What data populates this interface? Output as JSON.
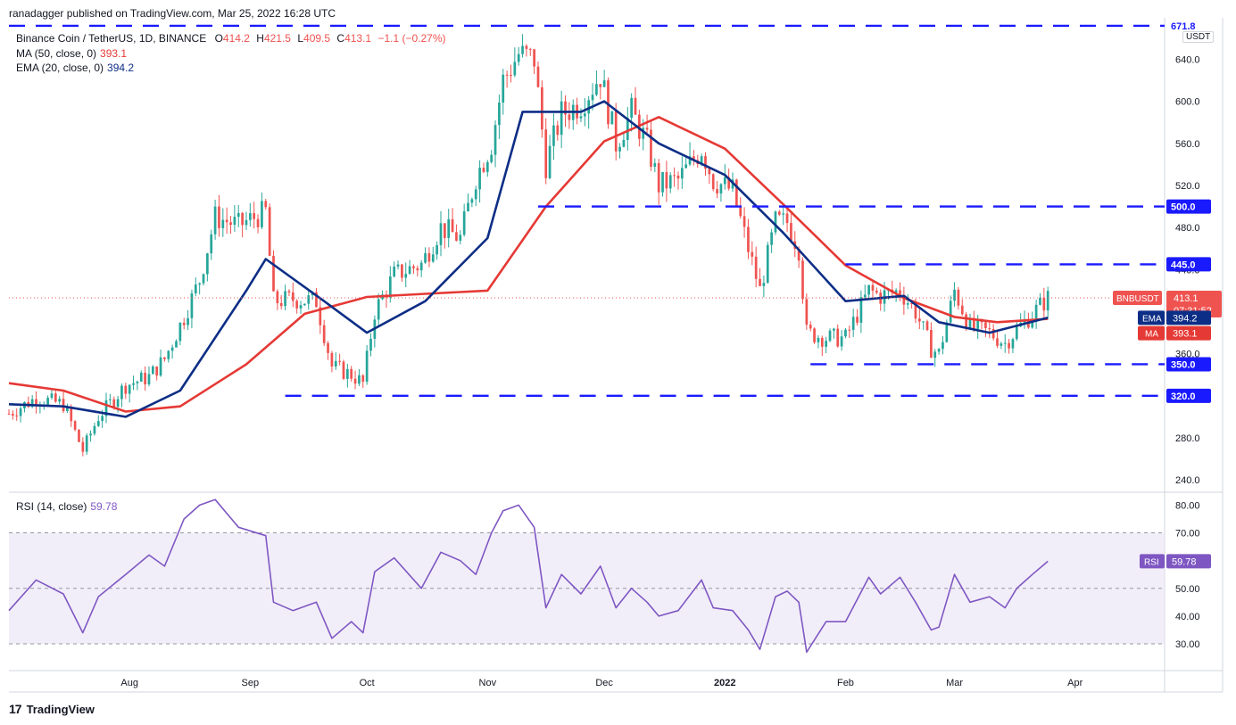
{
  "publish_info": "ranadagger published on TradingView.com, Mar 25, 2022 16:28 UTC",
  "brand": "TradingView",
  "currency_badge": "USDT",
  "legend": {
    "symbol_line": {
      "name": "Binance Coin / TetherUS, 1D, BINANCE",
      "o_label": "O",
      "o": "414.2",
      "h_label": "H",
      "h": "421.5",
      "l_label": "L",
      "l": "409.5",
      "c_label": "C",
      "c": "413.1",
      "change": "−1.1 (−0.27%)"
    },
    "ma": {
      "label": "MA (50, close, 0)",
      "value": "393.1"
    },
    "ema": {
      "label": "EMA (20, close, 0)",
      "value": "394.2"
    },
    "rsi": {
      "label": "RSI (14, close)",
      "value": "59.78"
    }
  },
  "colors": {
    "up": "#26a69a",
    "down": "#ef5350",
    "ma": "#e53935",
    "ema": "#0d2e86",
    "rsi": "#7e57c2",
    "level": "#1a1aff",
    "band": "#ede7f6"
  },
  "chart_data": [
    {
      "type": "candlestick",
      "symbol": "BNBUSDT",
      "ylim": [
        230,
        676
      ],
      "y_ticks": [
        "240.0",
        "280.0",
        "320.0",
        "360.0",
        "400.0",
        "440.0",
        "480.0",
        "520.0",
        "560.0",
        "600.0",
        "640.0",
        "671.8"
      ],
      "x_ticks": [
        "Aug",
        "Sep",
        "Oct",
        "Nov",
        "Dec",
        "2022",
        "Feb",
        "Mar",
        "Apr"
      ],
      "levels": [
        {
          "label": "671.8",
          "value": 671.8,
          "from": "2021-07-01"
        },
        {
          "label": "500.0",
          "value": 500.0,
          "from": "2021-11-14"
        },
        {
          "label": "445.0",
          "value": 445.0,
          "from": "2022-02-01"
        },
        {
          "label": "350.0",
          "value": 350.0,
          "from": "2022-01-23"
        },
        {
          "label": "320.0",
          "value": 320.0,
          "from": "2021-09-10"
        }
      ],
      "last_price": {
        "label": "BNBUSDT",
        "value": "413.1",
        "countdown": "07:31:52"
      },
      "ema_tag": {
        "label": "EMA",
        "value": "394.2"
      },
      "ma_tag": {
        "label": "MA",
        "value": "393.1"
      },
      "price_path": [
        [
          "2021-07-01",
          303
        ],
        [
          "2021-07-08",
          318
        ],
        [
          "2021-07-15",
          312
        ],
        [
          "2021-07-20",
          268
        ],
        [
          "2021-07-24",
          300
        ],
        [
          "2021-07-31",
          330
        ],
        [
          "2021-08-06",
          338
        ],
        [
          "2021-08-10",
          355
        ],
        [
          "2021-08-15",
          395
        ],
        [
          "2021-08-19",
          430
        ],
        [
          "2021-08-23",
          490
        ],
        [
          "2021-08-29",
          482
        ],
        [
          "2021-09-05",
          495
        ],
        [
          "2021-09-07",
          410
        ],
        [
          "2021-09-12",
          412
        ],
        [
          "2021-09-18",
          410
        ],
        [
          "2021-09-22",
          348
        ],
        [
          "2021-09-27",
          340
        ],
        [
          "2021-09-30",
          332
        ],
        [
          "2021-10-03",
          400
        ],
        [
          "2021-10-08",
          435
        ],
        [
          "2021-10-15",
          445
        ],
        [
          "2021-10-20",
          480
        ],
        [
          "2021-10-25",
          470
        ],
        [
          "2021-10-29",
          528
        ],
        [
          "2021-11-02",
          560
        ],
        [
          "2021-11-05",
          620
        ],
        [
          "2021-11-09",
          645
        ],
        [
          "2021-11-13",
          640
        ],
        [
          "2021-11-16",
          540
        ],
        [
          "2021-11-20",
          588
        ],
        [
          "2021-11-25",
          598
        ],
        [
          "2021-11-30",
          625
        ],
        [
          "2021-12-04",
          560
        ],
        [
          "2021-12-08",
          590
        ],
        [
          "2021-12-12",
          560
        ],
        [
          "2021-12-15",
          520
        ],
        [
          "2021-12-20",
          525
        ],
        [
          "2021-12-26",
          555
        ],
        [
          "2021-12-29",
          525
        ],
        [
          "2022-01-03",
          515
        ],
        [
          "2022-01-07",
          460
        ],
        [
          "2022-01-10",
          420
        ],
        [
          "2022-01-14",
          485
        ],
        [
          "2022-01-17",
          485
        ],
        [
          "2022-01-20",
          460
        ],
        [
          "2022-01-22",
          380
        ],
        [
          "2022-01-27",
          375
        ],
        [
          "2022-02-01",
          375
        ],
        [
          "2022-02-07",
          420
        ],
        [
          "2022-02-10",
          415
        ],
        [
          "2022-02-15",
          420
        ],
        [
          "2022-02-19",
          400
        ],
        [
          "2022-02-23",
          365
        ],
        [
          "2022-02-25",
          360
        ],
        [
          "2022-03-01",
          420
        ],
        [
          "2022-03-05",
          385
        ],
        [
          "2022-03-10",
          380
        ],
        [
          "2022-03-14",
          370
        ],
        [
          "2022-03-17",
          383
        ],
        [
          "2022-03-21",
          398
        ],
        [
          "2022-03-25",
          413.1
        ]
      ],
      "ma50_path": [
        [
          "2021-07-01",
          332
        ],
        [
          "2021-07-15",
          325
        ],
        [
          "2021-07-31",
          305
        ],
        [
          "2021-08-14",
          310
        ],
        [
          "2021-08-31",
          350
        ],
        [
          "2021-09-15",
          398
        ],
        [
          "2021-10-01",
          414
        ],
        [
          "2021-10-16",
          417
        ],
        [
          "2021-11-01",
          420
        ],
        [
          "2021-11-16",
          500
        ],
        [
          "2021-12-01",
          562
        ],
        [
          "2021-12-15",
          585
        ],
        [
          "2022-01-01",
          555
        ],
        [
          "2022-01-16",
          502
        ],
        [
          "2022-02-01",
          444
        ],
        [
          "2022-02-16",
          413
        ],
        [
          "2022-03-01",
          395
        ],
        [
          "2022-03-12",
          390
        ],
        [
          "2022-03-25",
          393.1
        ]
      ],
      "ema20_path": [
        [
          "2021-07-01",
          312
        ],
        [
          "2021-07-15",
          310
        ],
        [
          "2021-07-31",
          300
        ],
        [
          "2021-08-14",
          325
        ],
        [
          "2021-08-31",
          420
        ],
        [
          "2021-09-05",
          450
        ],
        [
          "2021-09-20",
          410
        ],
        [
          "2021-10-01",
          380
        ],
        [
          "2021-10-16",
          410
        ],
        [
          "2021-11-01",
          470
        ],
        [
          "2021-11-10",
          590
        ],
        [
          "2021-11-25",
          590
        ],
        [
          "2021-12-01",
          600
        ],
        [
          "2021-12-15",
          560
        ],
        [
          "2022-01-01",
          530
        ],
        [
          "2022-01-16",
          475
        ],
        [
          "2022-02-01",
          410
        ],
        [
          "2022-02-16",
          415
        ],
        [
          "2022-02-25",
          390
        ],
        [
          "2022-03-10",
          380
        ],
        [
          "2022-03-25",
          394.2
        ]
      ]
    },
    {
      "type": "line",
      "name": "RSI (14, close)",
      "ylim": [
        21,
        84
      ],
      "y_ticks": [
        "30.00",
        "40.00",
        "50.00",
        "60.00",
        "70.00",
        "80.00"
      ],
      "band": [
        30,
        70
      ],
      "midline": 50,
      "last_value": "59.78",
      "points": [
        [
          "2021-07-01",
          42
        ],
        [
          "2021-07-08",
          53
        ],
        [
          "2021-07-15",
          48
        ],
        [
          "2021-07-20",
          34
        ],
        [
          "2021-07-24",
          47
        ],
        [
          "2021-07-31",
          55
        ],
        [
          "2021-08-06",
          62
        ],
        [
          "2021-08-10",
          58
        ],
        [
          "2021-08-15",
          75
        ],
        [
          "2021-08-19",
          80
        ],
        [
          "2021-08-23",
          82
        ],
        [
          "2021-08-29",
          72
        ],
        [
          "2021-09-05",
          69
        ],
        [
          "2021-09-07",
          45
        ],
        [
          "2021-09-12",
          42
        ],
        [
          "2021-09-18",
          45
        ],
        [
          "2021-09-22",
          32
        ],
        [
          "2021-09-27",
          38
        ],
        [
          "2021-09-30",
          34
        ],
        [
          "2021-10-03",
          56
        ],
        [
          "2021-10-08",
          61
        ],
        [
          "2021-10-15",
          50
        ],
        [
          "2021-10-20",
          63
        ],
        [
          "2021-10-25",
          60
        ],
        [
          "2021-10-29",
          55
        ],
        [
          "2021-11-02",
          70
        ],
        [
          "2021-11-05",
          78
        ],
        [
          "2021-11-09",
          80
        ],
        [
          "2021-11-13",
          72
        ],
        [
          "2021-11-16",
          43
        ],
        [
          "2021-11-20",
          55
        ],
        [
          "2021-11-25",
          48
        ],
        [
          "2021-11-30",
          58
        ],
        [
          "2021-12-04",
          43
        ],
        [
          "2021-12-08",
          50
        ],
        [
          "2021-12-12",
          45
        ],
        [
          "2021-12-15",
          40
        ],
        [
          "2021-12-20",
          42
        ],
        [
          "2021-12-26",
          53
        ],
        [
          "2021-12-29",
          43
        ],
        [
          "2022-01-03",
          42
        ],
        [
          "2022-01-07",
          35
        ],
        [
          "2022-01-10",
          28
        ],
        [
          "2022-01-14",
          47
        ],
        [
          "2022-01-17",
          49
        ],
        [
          "2022-01-20",
          45
        ],
        [
          "2022-01-22",
          27
        ],
        [
          "2022-01-27",
          38
        ],
        [
          "2022-02-01",
          38
        ],
        [
          "2022-02-07",
          54
        ],
        [
          "2022-02-10",
          48
        ],
        [
          "2022-02-15",
          54
        ],
        [
          "2022-02-19",
          45
        ],
        [
          "2022-02-23",
          35
        ],
        [
          "2022-02-25",
          36
        ],
        [
          "2022-03-01",
          55
        ],
        [
          "2022-03-05",
          45
        ],
        [
          "2022-03-10",
          47
        ],
        [
          "2022-03-14",
          43
        ],
        [
          "2022-03-17",
          50
        ],
        [
          "2022-03-21",
          55
        ],
        [
          "2022-03-25",
          59.78
        ]
      ]
    }
  ]
}
